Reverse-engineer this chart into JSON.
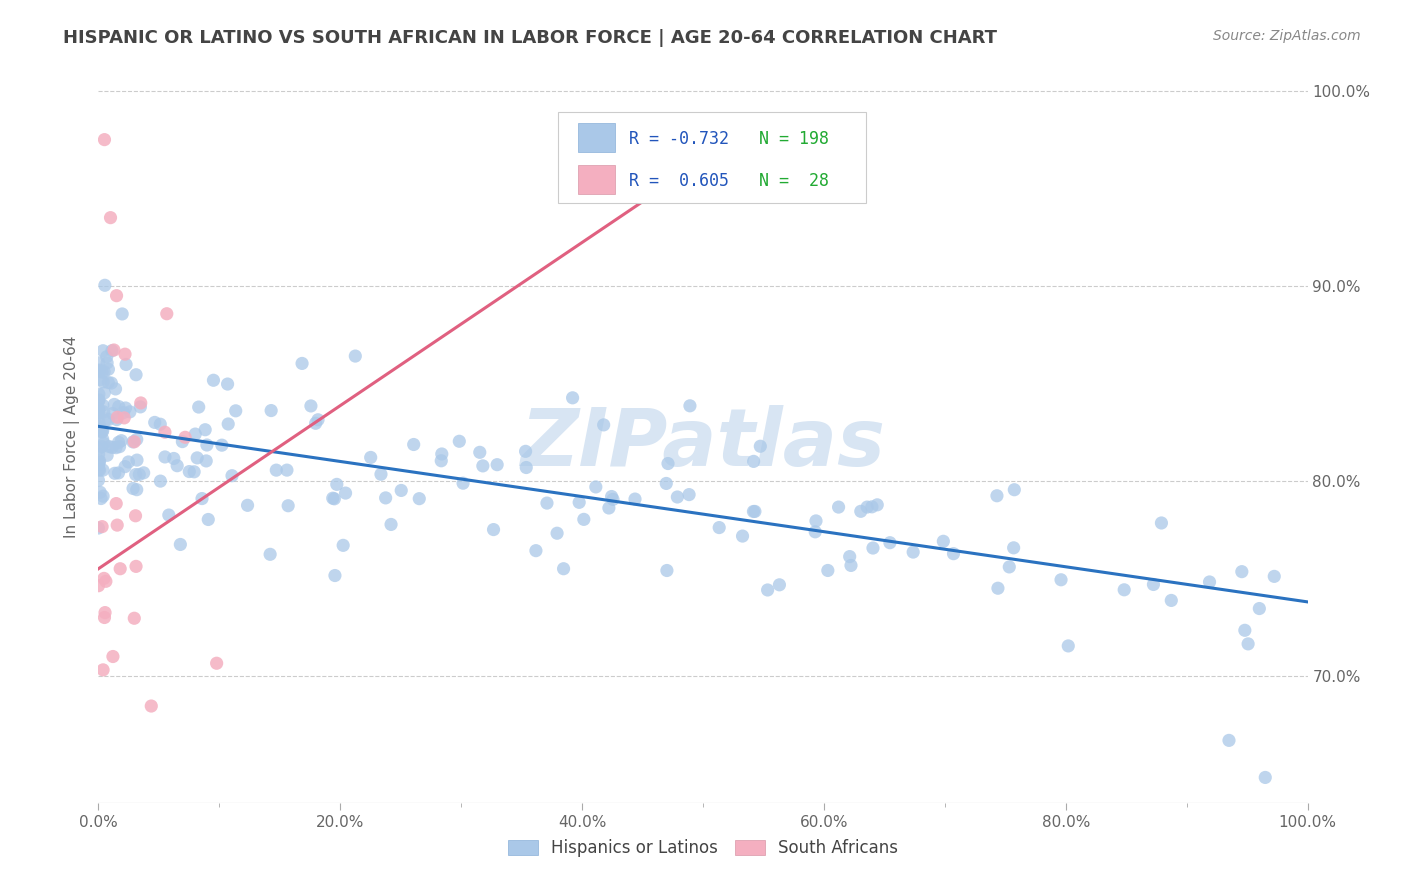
{
  "title": "HISPANIC OR LATINO VS SOUTH AFRICAN IN LABOR FORCE | AGE 20-64 CORRELATION CHART",
  "source": "Source: ZipAtlas.com",
  "ylabel": "In Labor Force | Age 20-64",
  "xlim": [
    0.0,
    1.0
  ],
  "ylim": [
    0.635,
    1.01
  ],
  "blue_R": "-0.732",
  "blue_N": "198",
  "pink_R": "0.605",
  "pink_N": "28",
  "blue_color": "#aac8e8",
  "pink_color": "#f4afc0",
  "blue_line_color": "#2a72c0",
  "pink_line_color": "#e06080",
  "legend_blue_label": "Hispanics or Latinos",
  "legend_pink_label": "South Africans",
  "watermark": "ZIPatlas",
  "background_color": "#ffffff",
  "grid_color": "#cccccc",
  "title_color": "#444444",
  "source_color": "#888888",
  "axis_label_color": "#666666",
  "blue_line_x": [
    0.0,
    1.0
  ],
  "blue_line_y": [
    0.828,
    0.738
  ],
  "pink_line_x": [
    0.0,
    0.55
  ],
  "pink_line_y": [
    0.755,
    0.985
  ]
}
